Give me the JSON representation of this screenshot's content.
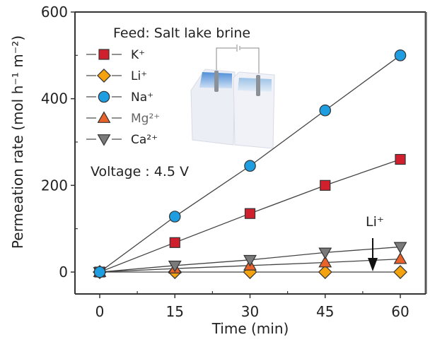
{
  "chart_data": {
    "type": "line",
    "xlabel": "Time (min)",
    "ylabel": "Permeation rate (mol h⁻¹ m⁻²)",
    "xlim": [
      -6,
      68
    ],
    "ylim": [
      -50,
      600
    ],
    "x": [
      0,
      15,
      30,
      45,
      60
    ],
    "xticks": [
      "0",
      "15",
      "30",
      "45",
      "60"
    ],
    "yticks": [
      "0",
      "200",
      "400",
      "600"
    ],
    "ytick_values": [
      0,
      200,
      400,
      600
    ],
    "grid": false,
    "legend_position": "top-left",
    "series": [
      {
        "name": "K⁺",
        "marker": "square",
        "color": "#d0202e",
        "values": [
          0,
          68,
          135,
          200,
          260
        ]
      },
      {
        "name": "Li⁺",
        "marker": "diamond",
        "color": "#f5a20f",
        "values": [
          0,
          0,
          0,
          0,
          0
        ]
      },
      {
        "name": "Na⁺",
        "marker": "circle",
        "color": "#1e9ee0",
        "values": [
          0,
          128,
          245,
          373,
          500
        ]
      },
      {
        "name": "Mg²⁺",
        "marker": "triangle-up",
        "color": "#e8622a",
        "values": [
          0,
          8,
          15,
          22,
          30
        ]
      },
      {
        "name": "Ca²⁺",
        "marker": "triangle-down",
        "color": "#7a7a7a",
        "values": [
          0,
          15,
          28,
          45,
          58
        ]
      }
    ],
    "annotations": {
      "feed": "Feed: Salt lake brine",
      "voltage": "Voltage : 4.5 V",
      "arrow_label": "Li⁺"
    }
  }
}
